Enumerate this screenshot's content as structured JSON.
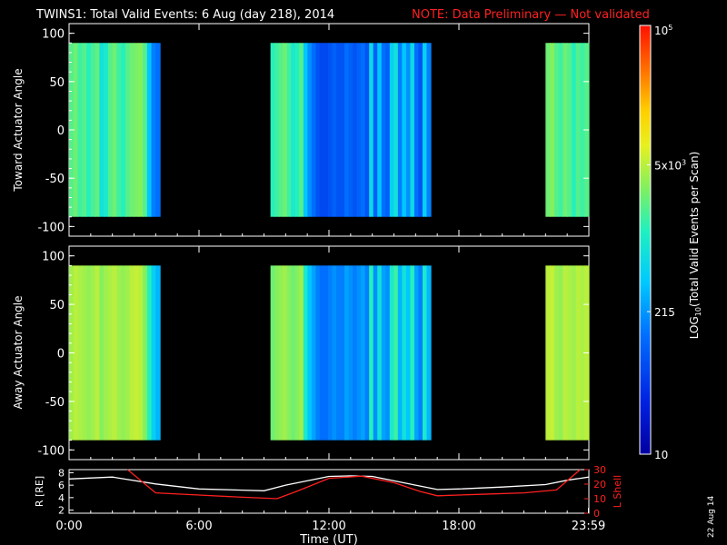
{
  "header": {
    "title": "TWINS1: Total Valid Events:  6 Aug (day 218), 2014",
    "note": "NOTE: Data Preliminary — Not validated",
    "title_color": "#ffffff",
    "note_color": "#ff2020"
  },
  "footer": {
    "date_stamp": "22 Aug 14"
  },
  "chart_data": [
    {
      "type": "heatmap",
      "panel": "toward",
      "ylabel": "Toward Actuator Angle",
      "xlabel": "",
      "xlim": [
        "0:00",
        "24:00"
      ],
      "ylim": [
        -110,
        110
      ],
      "y_data_range": [
        -90,
        90
      ],
      "ytick_labels": [
        "100",
        "50",
        "0",
        "-50",
        "-100"
      ],
      "ytick_values": [
        100,
        50,
        0,
        -50,
        -100
      ],
      "colorscale": "log10 events per scan",
      "data_intervals_hours": [
        [
          0.0,
          4.2
        ],
        [
          9.3,
          16.7
        ],
        [
          22.0,
          24.0
        ]
      ],
      "column_log_values": {
        "interval_1": [
          3.3,
          3.4,
          3.2,
          3.3,
          3.1,
          3.25,
          3.35,
          2.9,
          3.0,
          3.3,
          3.4,
          3.2,
          3.1,
          3.3,
          3.4,
          3.45,
          3.5,
          3.3,
          2.6,
          2.2,
          2.1
        ],
        "interval_2": [
          3.1,
          3.2,
          3.3,
          3.4,
          3.2,
          3.0,
          3.1,
          3.3,
          2.6,
          2.3,
          2.1,
          1.9,
          1.8,
          1.8,
          1.9,
          2.0,
          1.9,
          1.9,
          2.1,
          2.0,
          1.9,
          2.0,
          2.1,
          1.9,
          2.8,
          2.0,
          2.6,
          2.1,
          2.0,
          2.7,
          2.9,
          2.2,
          2.6,
          2.3,
          2.8,
          2.1,
          1.9,
          2.7,
          2.2
        ],
        "interval_3": [
          3.4,
          3.5,
          3.3,
          3.2,
          3.4,
          3.3,
          3.1,
          3.3,
          3.2,
          3.3
        ]
      }
    },
    {
      "type": "heatmap",
      "panel": "away",
      "ylabel": "Away Actuator Angle",
      "xlabel": "",
      "xlim": [
        "0:00",
        "24:00"
      ],
      "ylim": [
        -110,
        110
      ],
      "y_data_range": [
        -90,
        90
      ],
      "ytick_labels": [
        "100",
        "50",
        "0",
        "-50",
        "-100"
      ],
      "ytick_values": [
        100,
        50,
        0,
        -50,
        -100
      ],
      "colorscale": "log10 events per scan",
      "data_intervals_hours": [
        [
          0.0,
          4.2
        ],
        [
          9.3,
          16.7
        ],
        [
          22.0,
          24.0
        ]
      ],
      "column_log_values": {
        "interval_1": [
          3.6,
          3.7,
          3.65,
          3.6,
          3.55,
          3.6,
          3.7,
          3.5,
          3.6,
          3.65,
          3.7,
          3.6,
          3.55,
          3.6,
          3.7,
          3.75,
          3.7,
          3.5,
          3.1,
          2.7,
          2.5
        ],
        "interval_2": [
          3.4,
          3.5,
          3.55,
          3.6,
          3.5,
          3.4,
          3.5,
          3.6,
          3.0,
          2.6,
          2.4,
          2.2,
          2.1,
          2.1,
          2.2,
          2.3,
          2.2,
          2.2,
          2.4,
          2.3,
          2.2,
          2.3,
          2.4,
          2.2,
          3.1,
          2.3,
          2.9,
          2.4,
          2.3,
          3.0,
          3.2,
          2.5,
          2.9,
          2.6,
          3.1,
          2.4,
          2.2,
          3.0,
          2.5
        ],
        "interval_3": [
          3.7,
          3.75,
          3.6,
          3.55,
          3.7,
          3.65,
          3.6,
          3.7,
          3.65,
          3.7
        ]
      }
    },
    {
      "type": "line",
      "panel": "orbit",
      "xlabel": "Time (UT)",
      "xtick_labels": [
        "0:00",
        "6:00",
        "12:00",
        "18:00",
        "23:59"
      ],
      "xtick_hours": [
        0,
        6,
        12,
        18,
        23.98
      ],
      "ylabel_left": "R [RE]",
      "ylabel_left_sub": "E",
      "ylabel_right": "L Shell",
      "ylim_left": [
        1.5,
        8.5
      ],
      "ylim_right": [
        0,
        30
      ],
      "ytick_left": [
        2,
        4,
        6,
        8
      ],
      "ytick_right": [
        0,
        10,
        20,
        30
      ],
      "series": [
        {
          "axis": "left",
          "color": "#ffffff",
          "x": [
            0,
            2,
            4,
            6,
            8,
            9,
            10,
            12,
            13,
            14,
            16,
            17,
            18,
            20,
            22,
            23,
            24
          ],
          "y": [
            7.0,
            7.3,
            6.2,
            5.4,
            5.2,
            5.1,
            6.0,
            7.4,
            7.5,
            7.4,
            6.0,
            5.3,
            5.4,
            5.7,
            6.1,
            6.8,
            7.3
          ]
        },
        {
          "axis": "right",
          "color": "#ff2020",
          "x": [
            2.7,
            4.0,
            6,
            8,
            9.6,
            10.5,
            12,
            13.5,
            15,
            16.2,
            17,
            19,
            21,
            22.5,
            23.6
          ],
          "y": [
            30,
            14,
            12.5,
            11,
            10,
            15,
            24,
            25.5,
            21,
            15,
            12,
            13,
            14,
            16,
            30
          ]
        }
      ]
    }
  ],
  "colorbar": {
    "label": "LOG10(Total Valid Events per Scan)",
    "label_prefix": "LOG",
    "label_sub": "10",
    "label_suffix": "(Total Valid Events per Scan)",
    "log_min": 1.0,
    "log_max": 5.0,
    "ticks": [
      {
        "label": "10",
        "log": 1.0
      },
      {
        "label": "215",
        "log": 2.33
      },
      {
        "label": "5x10",
        "sup": "3",
        "log": 3.7
      },
      {
        "label": "10",
        "sup": "5",
        "log": 5.0
      }
    ]
  }
}
